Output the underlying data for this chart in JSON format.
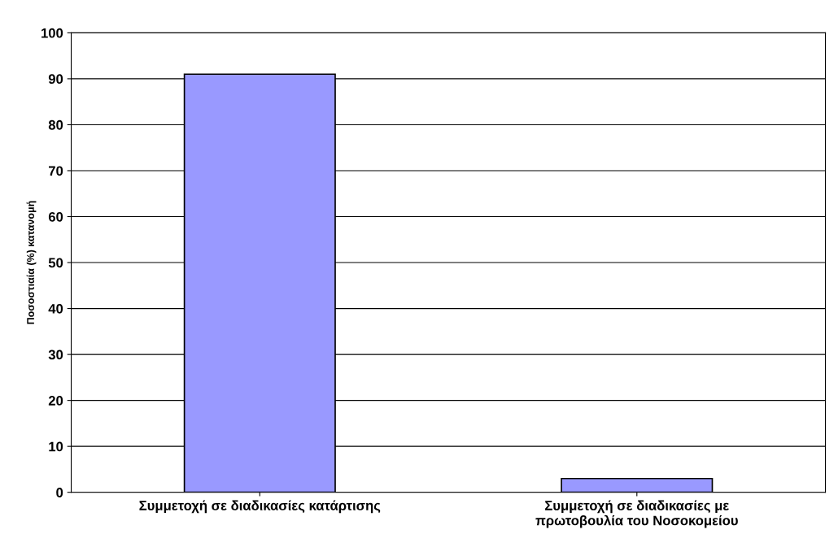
{
  "chart_data": {
    "type": "bar",
    "ylabel": "Ποσοστιαία (%) κατανομή",
    "categories": [
      "Συμμετοχή σε διαδικασίες κατάρτισης",
      "Συμμετοχή σε διαδικασίες με\nπρωτοβουλία του Νοσοκομείου"
    ],
    "values": [
      91,
      3
    ],
    "color": "#9999ff",
    "ylim": [
      0,
      100
    ],
    "yticks": [
      0,
      10,
      20,
      30,
      40,
      50,
      60,
      70,
      80,
      90,
      100
    ],
    "grid": "y"
  }
}
